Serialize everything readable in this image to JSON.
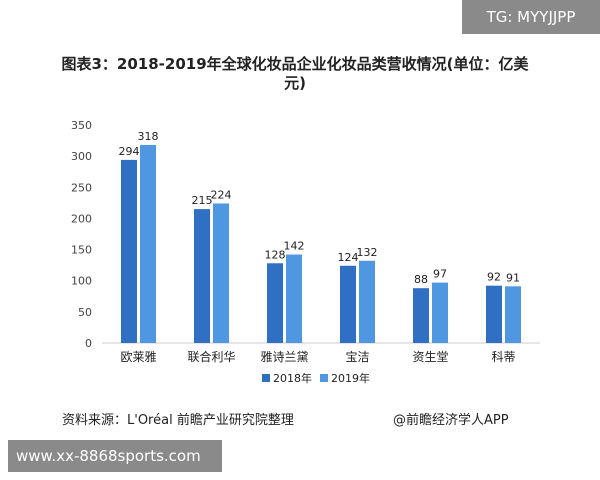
{
  "header": {
    "tag": "TG: MYYJJPP"
  },
  "footer": {
    "source": "资料来源：L'Oréal 前瞻产业研究院整理",
    "credit": "@前瞻经济学人APP"
  },
  "watermark_url": "www.xx-8868sports.com",
  "chart_data": {
    "type": "bar",
    "title": "图表3：2018-2019年全球化妆品企业化妆品类营收情况(单位：亿美元)",
    "categories": [
      "欧莱雅",
      "联合利华",
      "雅诗兰黛",
      "宝洁",
      "资生堂",
      "科蒂"
    ],
    "series": [
      {
        "name": "2018年",
        "values": [
          294,
          215,
          128,
          124,
          88,
          92
        ],
        "color": "#2f6fc4"
      },
      {
        "name": "2019年",
        "values": [
          318,
          224,
          142,
          132,
          97,
          91
        ],
        "color": "#4f97e0"
      }
    ],
    "ylim": [
      0,
      350
    ],
    "yticks": [
      0,
      50,
      100,
      150,
      200,
      250,
      300,
      350
    ],
    "legend_position": "bottom",
    "grid": false
  }
}
